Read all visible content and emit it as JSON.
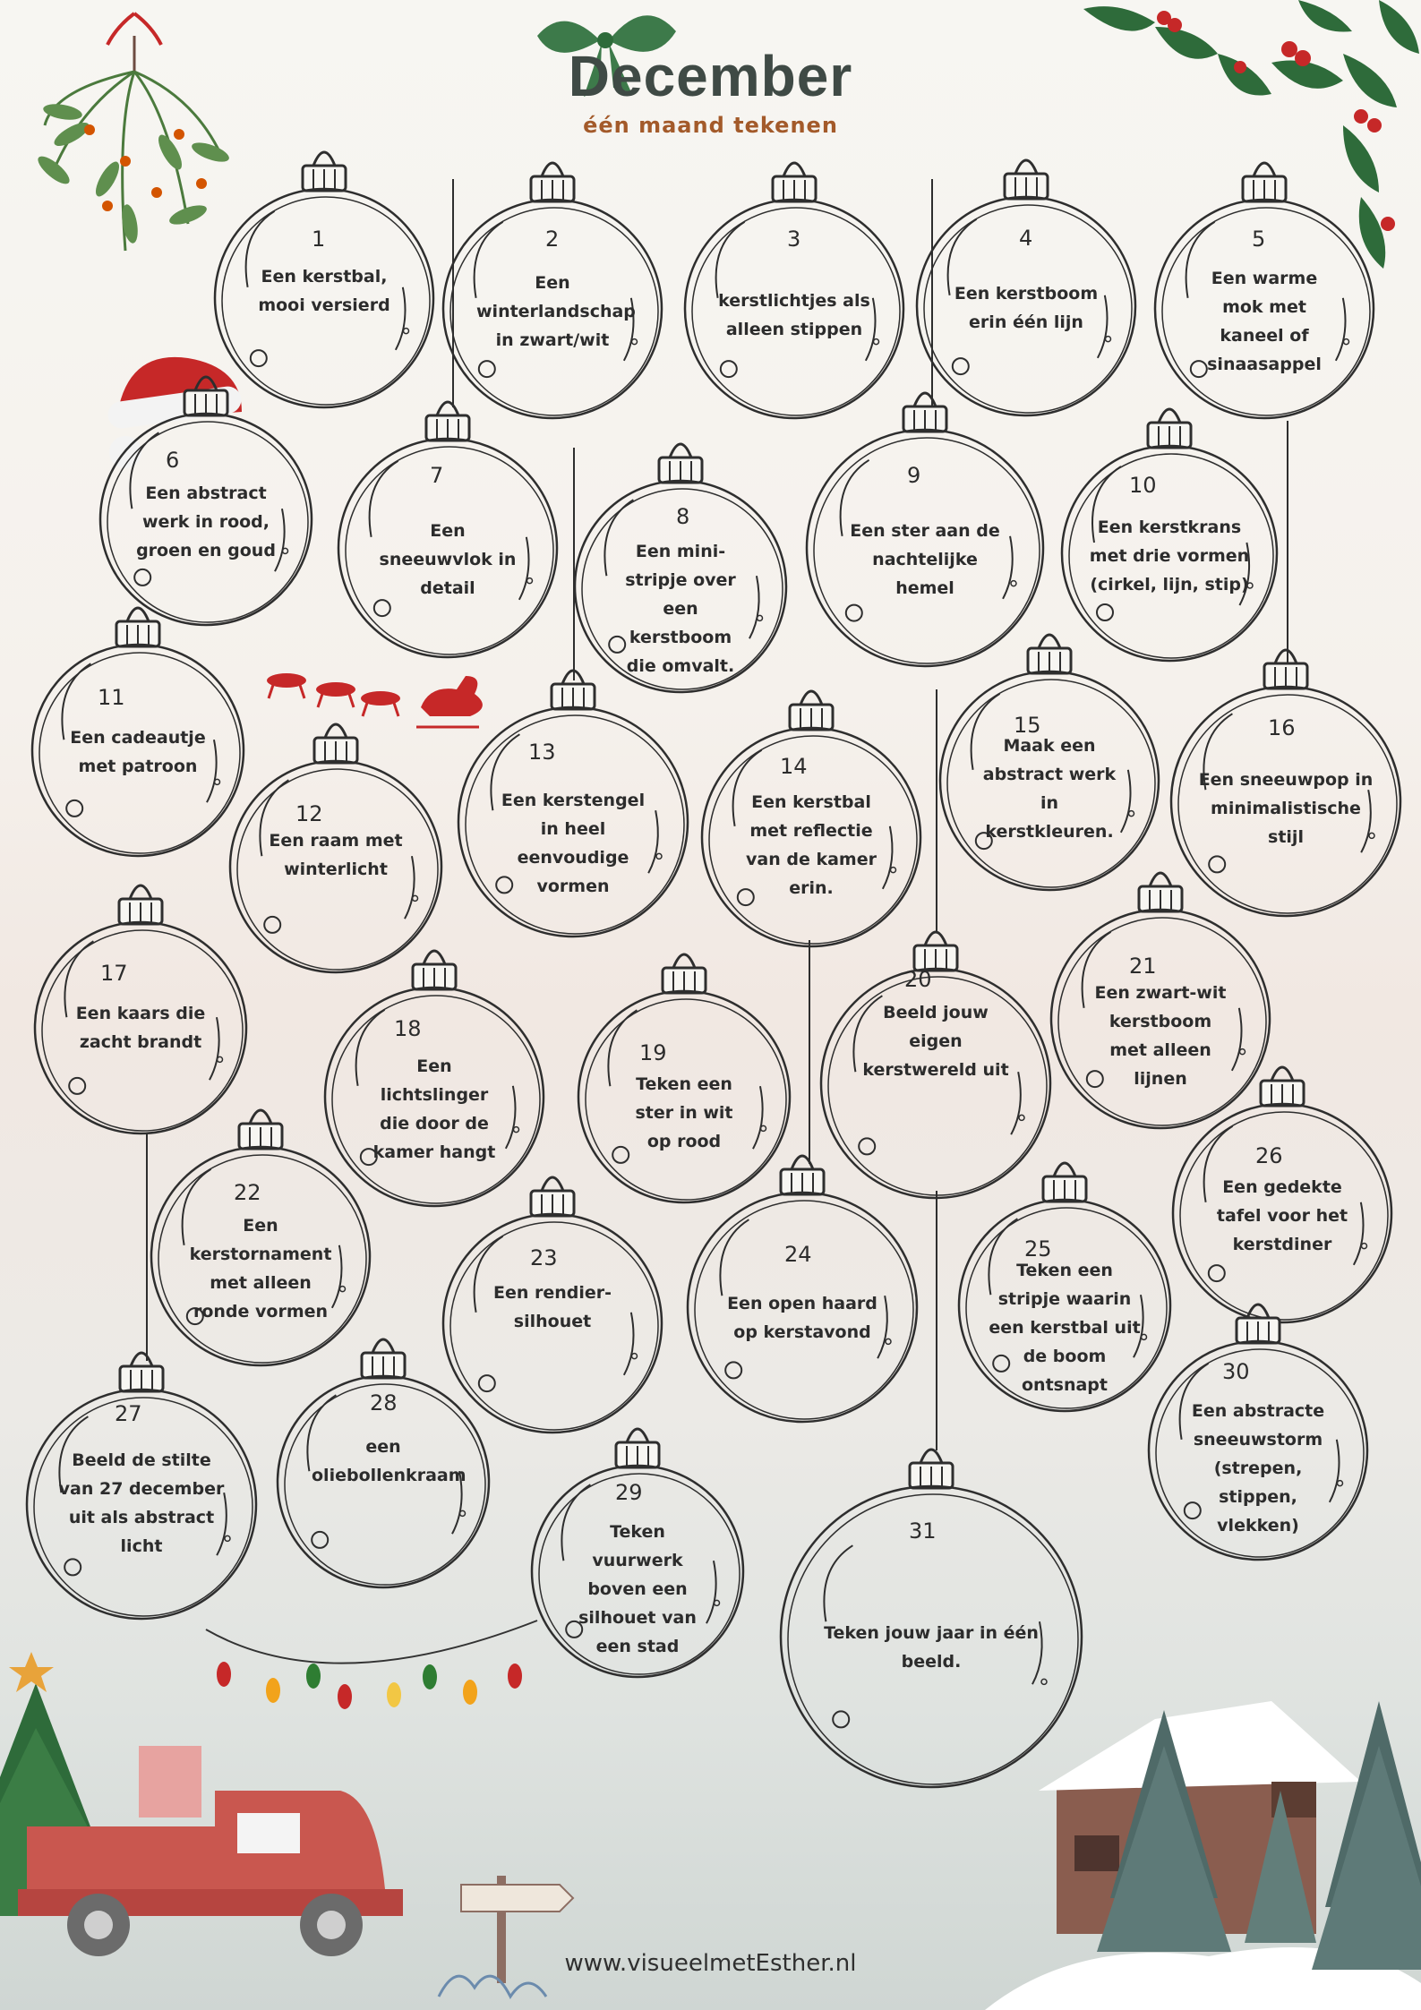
{
  "header": {
    "title": "December",
    "subtitle": "één maand tekenen"
  },
  "footer": {
    "url": "www.visueelmetEsther.nl"
  },
  "prompts": [
    {
      "day": "1",
      "text": "Een kerstbal, mooi versierd"
    },
    {
      "day": "2",
      "text": "Een winterlandschap in zwart/wit"
    },
    {
      "day": "3",
      "text": "kerstlichtjes als alleen stippen"
    },
    {
      "day": "4",
      "text": "Een kerstboom erin één lijn"
    },
    {
      "day": "5",
      "text": "Een warme mok met kaneel of sinaasappel"
    },
    {
      "day": "6",
      "text": "Een abstract werk in rood, groen en goud"
    },
    {
      "day": "7",
      "text": "Een sneeuwvlok in detail"
    },
    {
      "day": "8",
      "text": "Een mini-stripje over een kerstboom die omvalt."
    },
    {
      "day": "9",
      "text": "Een ster aan de nachtelijke hemel"
    },
    {
      "day": "10",
      "text": "Een kerstkrans met drie vormen (cirkel, lijn, stip)"
    },
    {
      "day": "11",
      "text": "Een cadeautje met patroon"
    },
    {
      "day": "12",
      "text": "Een raam met winterlicht"
    },
    {
      "day": "13",
      "text": "Een kerstengel in heel eenvoudige vormen"
    },
    {
      "day": "14",
      "text": "Een kerstbal met reflectie van de kamer erin."
    },
    {
      "day": "15",
      "text": "Maak een abstract werk in kerstkleuren."
    },
    {
      "day": "16",
      "text": "Een sneeuwpop in minimalistische stijl"
    },
    {
      "day": "17",
      "text": "Een kaars die zacht brandt"
    },
    {
      "day": "18",
      "text": "Een lichtslinger die door de kamer hangt"
    },
    {
      "day": "19",
      "text": "Teken een ster in wit op rood"
    },
    {
      "day": "20",
      "text": "Beeld jouw eigen kerstwereld uit"
    },
    {
      "day": "21",
      "text": "Een zwart-wit kerstboom met alleen lijnen"
    },
    {
      "day": "22",
      "text": "Een kerstornament met alleen ronde vormen"
    },
    {
      "day": "23",
      "text": "Een rendier-silhouet"
    },
    {
      "day": "24",
      "text": "Een open haard op kerstavond"
    },
    {
      "day": "25",
      "text": "Teken een stripje waarin een kerstbal uit de boom ontsnapt"
    },
    {
      "day": "26",
      "text": "Een gedekte tafel voor het kerstdiner"
    },
    {
      "day": "27",
      "text": "Beeld de stilte van 27 december uit als abstract licht"
    },
    {
      "day": "28",
      "text": "een oliebollenkraam"
    },
    {
      "day": "29",
      "text": "Teken vuurwerk boven een silhouet van een stad"
    },
    {
      "day": "30",
      "text": "Een abstracte sneeuwstorm (strepen, stippen, vlekken)"
    },
    {
      "day": "31",
      "text": "Teken jouw jaar in één beeld."
    }
  ],
  "colors": {
    "title": "#3f4a45",
    "subtitle": "#a35a2a",
    "ink": "#2c2c2c",
    "holly_green": "#2e6b3a",
    "berry_red": "#c62828"
  },
  "decorations": [
    "mistletoe-icon",
    "bow-icon",
    "holly-icon",
    "santa-hat-icon",
    "sleigh-icon",
    "string-lights-icon",
    "christmas-tree-icon",
    "red-truck-icon",
    "signpost-icon",
    "snowy-cabin-icon"
  ]
}
